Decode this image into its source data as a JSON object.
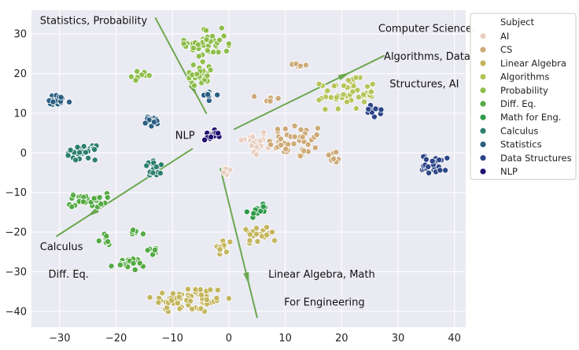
{
  "chart_data": {
    "type": "scatter",
    "x_ticks": [
      -30,
      -20,
      -10,
      0,
      10,
      20,
      30,
      40
    ],
    "y_ticks": [
      30,
      20,
      10,
      0,
      -10,
      -20,
      -30,
      -40
    ],
    "xlim": [
      -35,
      42
    ],
    "ylim": [
      -44,
      36
    ],
    "grid": true,
    "legend": {
      "title": "Subject",
      "placement": "right",
      "entries": [
        {
          "label": "AI",
          "color": "#e9cfc1"
        },
        {
          "label": "CS",
          "color": "#cdaa78"
        },
        {
          "label": "Linear Algebra",
          "color": "#c4b65e"
        },
        {
          "label": "Algorithms",
          "color": "#b6c45a"
        },
        {
          "label": "Probability",
          "color": "#8fbe4c"
        },
        {
          "label": "Diff. Eq.",
          "color": "#55aa45"
        },
        {
          "label": "Math for Eng.",
          "color": "#2f9a4a"
        },
        {
          "label": "Calculus",
          "color": "#2d7f6e"
        },
        {
          "label": "Statistics",
          "color": "#2a5f82"
        },
        {
          "label": "Data Structures",
          "color": "#2c4587"
        },
        {
          "label": "NLP",
          "color": "#1f1270"
        }
      ]
    },
    "clusters": [
      {
        "subject": "AI",
        "cx": 4.5,
        "cy": 2.5,
        "rx": 2.5,
        "ry": 3.5,
        "n": 26
      },
      {
        "subject": "AI",
        "cx": -0.5,
        "cy": -5,
        "rx": 1.2,
        "ry": 1.5,
        "n": 8
      },
      {
        "subject": "CS",
        "cx": 12,
        "cy": 3,
        "rx": 5,
        "ry": 4.5,
        "n": 45
      },
      {
        "subject": "CS",
        "cx": 18.5,
        "cy": -1,
        "rx": 1.5,
        "ry": 1.5,
        "n": 8
      },
      {
        "subject": "CS",
        "cx": 7,
        "cy": 13.5,
        "rx": 2.5,
        "ry": 1.3,
        "n": 7
      },
      {
        "subject": "CS",
        "cx": 12.5,
        "cy": 22,
        "rx": 1.3,
        "ry": 1.5,
        "n": 6
      },
      {
        "subject": "Linear Algebra",
        "cx": -7,
        "cy": -37,
        "rx": 7,
        "ry": 3.5,
        "n": 70
      },
      {
        "subject": "Linear Algebra",
        "cx": 6,
        "cy": -20.5,
        "rx": 3,
        "ry": 2.3,
        "n": 22
      },
      {
        "subject": "Linear Algebra",
        "cx": -1,
        "cy": -24,
        "rx": 1.5,
        "ry": 2.5,
        "n": 12
      },
      {
        "subject": "Algorithms",
        "cx": 21,
        "cy": 15,
        "rx": 5,
        "ry": 4,
        "n": 50
      },
      {
        "subject": "Probability",
        "cx": -4,
        "cy": 27.5,
        "rx": 4,
        "ry": 4,
        "n": 45
      },
      {
        "subject": "Probability",
        "cx": -5,
        "cy": 20,
        "rx": 3,
        "ry": 3,
        "n": 25
      },
      {
        "subject": "Probability",
        "cx": -15.5,
        "cy": 19.5,
        "rx": 1.8,
        "ry": 1.2,
        "n": 10
      },
      {
        "subject": "Diff. Eq.",
        "cx": -25,
        "cy": -12,
        "rx": 3.5,
        "ry": 1.8,
        "n": 32
      },
      {
        "subject": "Diff. Eq.",
        "cx": -18,
        "cy": -28,
        "rx": 3,
        "ry": 1.5,
        "n": 20
      },
      {
        "subject": "Diff. Eq.",
        "cx": -22,
        "cy": -22,
        "rx": 1.2,
        "ry": 1.5,
        "n": 8
      },
      {
        "subject": "Diff. Eq.",
        "cx": -13.5,
        "cy": -25,
        "rx": 1.5,
        "ry": 1.3,
        "n": 8
      },
      {
        "subject": "Diff. Eq.",
        "cx": -16.5,
        "cy": -20,
        "rx": 1.3,
        "ry": 0.8,
        "n": 6
      },
      {
        "subject": "Math for Eng.",
        "cx": 5,
        "cy": -14.5,
        "rx": 1.8,
        "ry": 1.8,
        "n": 16
      },
      {
        "subject": "Calculus",
        "cx": -26,
        "cy": 0,
        "rx": 2.5,
        "ry": 1.8,
        "n": 26
      },
      {
        "subject": "Calculus",
        "cx": -13,
        "cy": -4,
        "rx": 2,
        "ry": 2,
        "n": 18
      },
      {
        "subject": "Statistics",
        "cx": -30.5,
        "cy": 13,
        "rx": 2.5,
        "ry": 1.5,
        "n": 22
      },
      {
        "subject": "Statistics",
        "cx": -13.5,
        "cy": 8,
        "rx": 1.8,
        "ry": 1.5,
        "n": 14
      },
      {
        "subject": "Statistics",
        "cx": -3.5,
        "cy": 14.5,
        "rx": 1.5,
        "ry": 1.3,
        "n": 10
      },
      {
        "subject": "Data Structures",
        "cx": 36.5,
        "cy": -3,
        "rx": 2.2,
        "ry": 2.5,
        "n": 30
      },
      {
        "subject": "Data Structures",
        "cx": 25.5,
        "cy": 10.5,
        "rx": 1.5,
        "ry": 1.5,
        "n": 10
      },
      {
        "subject": "NLP",
        "cx": -3,
        "cy": 4.5,
        "rx": 1.3,
        "ry": 1.3,
        "n": 14
      }
    ],
    "annotations": [
      {
        "text": "Statistics, Probability",
        "x": -33.5,
        "y": 32.5
      },
      {
        "text": "Computer Science,",
        "x": 26.5,
        "y": 30.5
      },
      {
        "text": "Algorithms, Data",
        "x": 27.5,
        "y": 23.5
      },
      {
        "text": "Structures, AI",
        "x": 28.5,
        "y": 16.5
      },
      {
        "text": "NLP",
        "x": -9.5,
        "y": 3.5
      },
      {
        "text": "Calculus",
        "x": -33.5,
        "y": -24.5
      },
      {
        "text": "Diff. Eq.",
        "x": -32,
        "y": -31.5
      },
      {
        "text": "Linear Algebra,  Math",
        "x": 7,
        "y": -31.5
      },
      {
        "text": "For Engineering",
        "x": 9.8,
        "y": -38.5
      }
    ],
    "arrows": [
      {
        "from": [
          -13,
          34
        ],
        "to": [
          -4,
          10
        ]
      },
      {
        "from": [
          1,
          6
        ],
        "to": [
          27.5,
          24.5
        ]
      },
      {
        "from": [
          -6.5,
          1
        ],
        "to": [
          -30.5,
          -21
        ]
      },
      {
        "from": [
          -1.5,
          -4
        ],
        "to": [
          5,
          -41.5
        ]
      }
    ]
  }
}
